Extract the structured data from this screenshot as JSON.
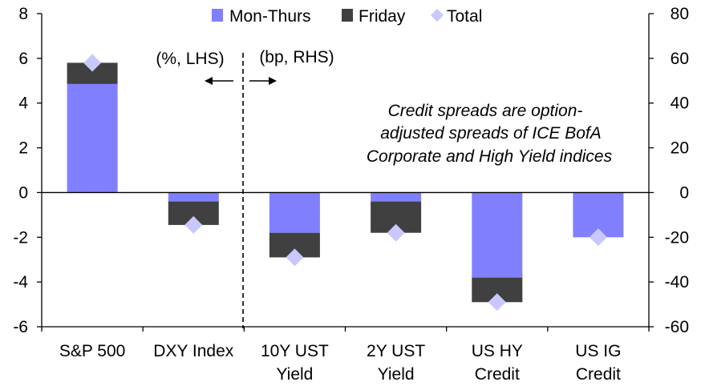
{
  "chart_data": {
    "type": "bar",
    "stacked": true,
    "categories": [
      [
        "S&P 500"
      ],
      [
        "DXY Index"
      ],
      [
        "10Y UST",
        "Yield"
      ],
      [
        "2Y UST",
        "Yield"
      ],
      [
        "US HY",
        "Credit"
      ],
      [
        "US IG",
        "Credit"
      ]
    ],
    "axis_for_category": [
      "left",
      "left",
      "right",
      "right",
      "right",
      "right"
    ],
    "series": [
      {
        "name": "Mon-Thurs",
        "kind": "bar",
        "color": "#8080FF",
        "values": [
          4.85,
          -0.4,
          -18,
          -4,
          -38,
          -20
        ]
      },
      {
        "name": "Friday",
        "kind": "bar",
        "color": "#404040",
        "values": [
          0.95,
          -1.05,
          -11,
          -14,
          -11,
          0
        ]
      },
      {
        "name": "Total",
        "kind": "marker",
        "color": "#C8C8FF",
        "values": [
          5.8,
          -1.45,
          -29,
          -18,
          -49,
          -20
        ]
      }
    ],
    "left_axis": {
      "min": -6,
      "max": 8,
      "ticks": [
        "8",
        "6",
        "4",
        "2",
        "0",
        "-2",
        "-4",
        "-6"
      ],
      "tick_values": [
        8,
        6,
        4,
        2,
        0,
        -2,
        -4,
        -6
      ]
    },
    "right_axis": {
      "min": -60,
      "max": 80,
      "ticks": [
        "80",
        "60",
        "40",
        "20",
        "0",
        "-20",
        "-40",
        "-60"
      ],
      "tick_values": [
        80,
        60,
        40,
        20,
        0,
        -20,
        -40,
        -60
      ]
    },
    "annotations": {
      "left_label": "(%, LHS)",
      "right_label": "(bp, RHS)",
      "note_lines": [
        "Credit spreads are option-",
        "adjusted spreads of ICE BofA",
        "Corporate and High Yield indices"
      ]
    },
    "legend_position": "top"
  }
}
